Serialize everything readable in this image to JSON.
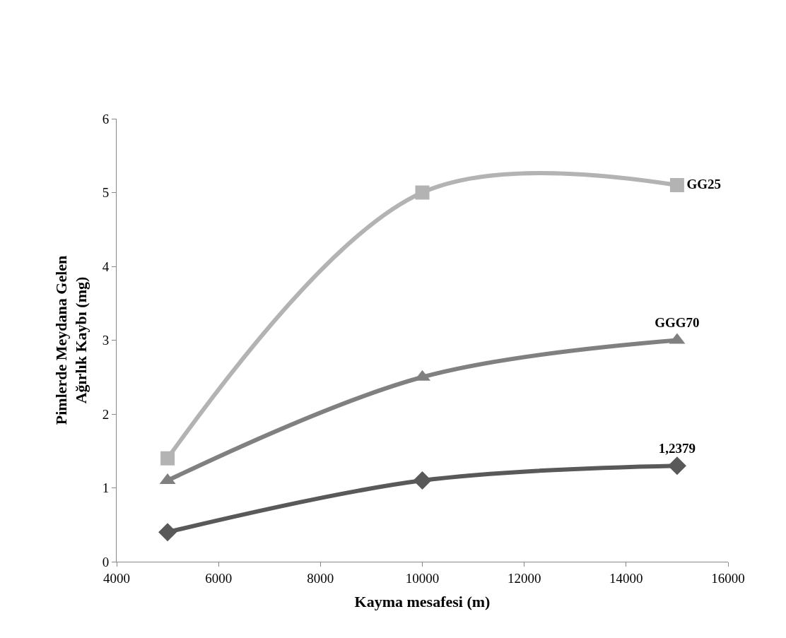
{
  "chart_data": {
    "type": "line",
    "xlabel": "Kayma mesafesi (m)",
    "ylabel": "Pimlerde Meydana Gelen Ağırlık Kaybı (mg)",
    "x": [
      5000,
      10000,
      15000
    ],
    "series": [
      {
        "name": "GG25",
        "color": "#b3b3b3",
        "marker": "square",
        "values": [
          1.4,
          5.0,
          5.1
        ]
      },
      {
        "name": "GGG70",
        "color": "#808080",
        "marker": "triangle",
        "values": [
          1.1,
          2.5,
          3.0
        ]
      },
      {
        "name": "1,2379",
        "color": "#595959",
        "marker": "diamond",
        "values": [
          0.4,
          1.1,
          1.3
        ]
      }
    ],
    "xlim": [
      4000,
      16000
    ],
    "xticks": [
      4000,
      6000,
      8000,
      10000,
      12000,
      14000,
      16000
    ],
    "ylim": [
      0,
      6
    ],
    "yticks": [
      0,
      1,
      2,
      3,
      4,
      5,
      6
    ],
    "legend": false
  }
}
